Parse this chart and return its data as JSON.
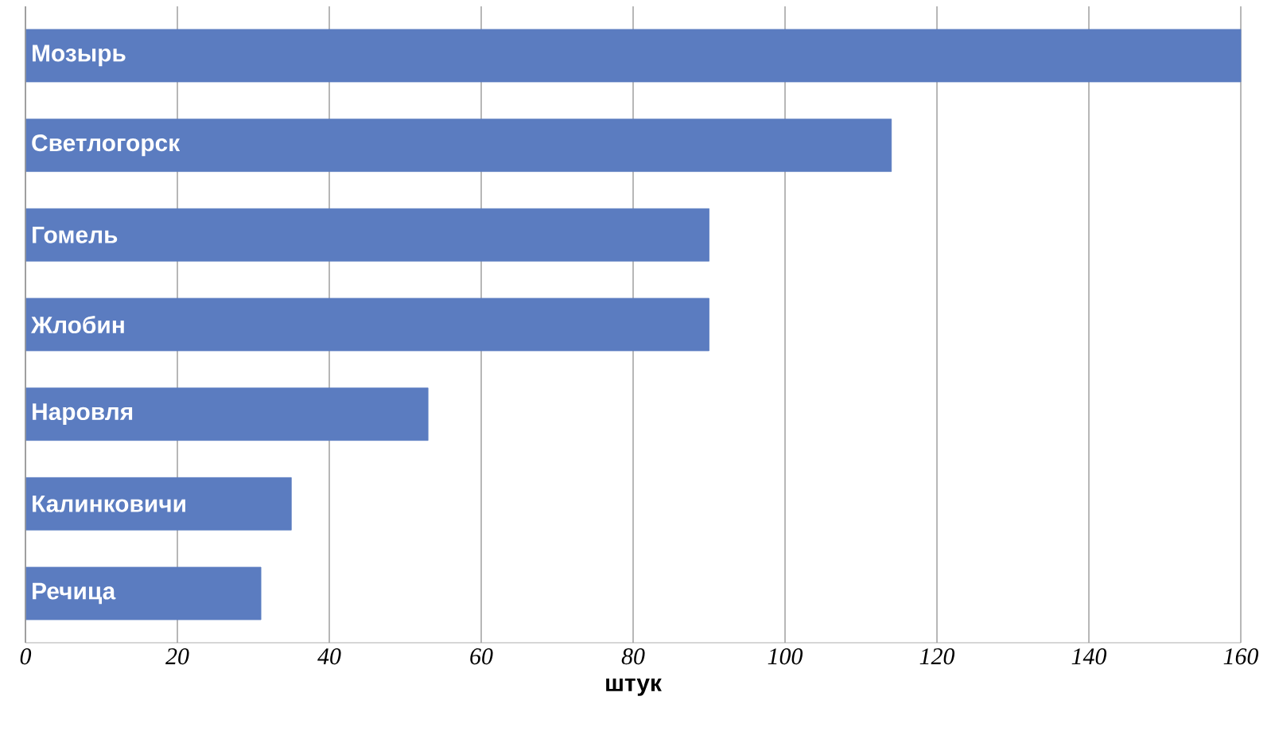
{
  "chart_data": {
    "type": "bar",
    "orientation": "horizontal",
    "xlabel": "штук",
    "categories": [
      "Мозырь",
      "Светлогорск",
      "Гомель",
      "Жлобин",
      "Наровля",
      "Калинковичи",
      "Речица"
    ],
    "values": [
      160,
      114,
      90,
      90,
      53,
      35,
      31
    ],
    "color": "#5b7cc0",
    "xlim": [
      0,
      160
    ],
    "xticks": [
      0,
      20,
      40,
      60,
      80,
      100,
      120,
      140,
      160
    ],
    "grid": "x"
  }
}
